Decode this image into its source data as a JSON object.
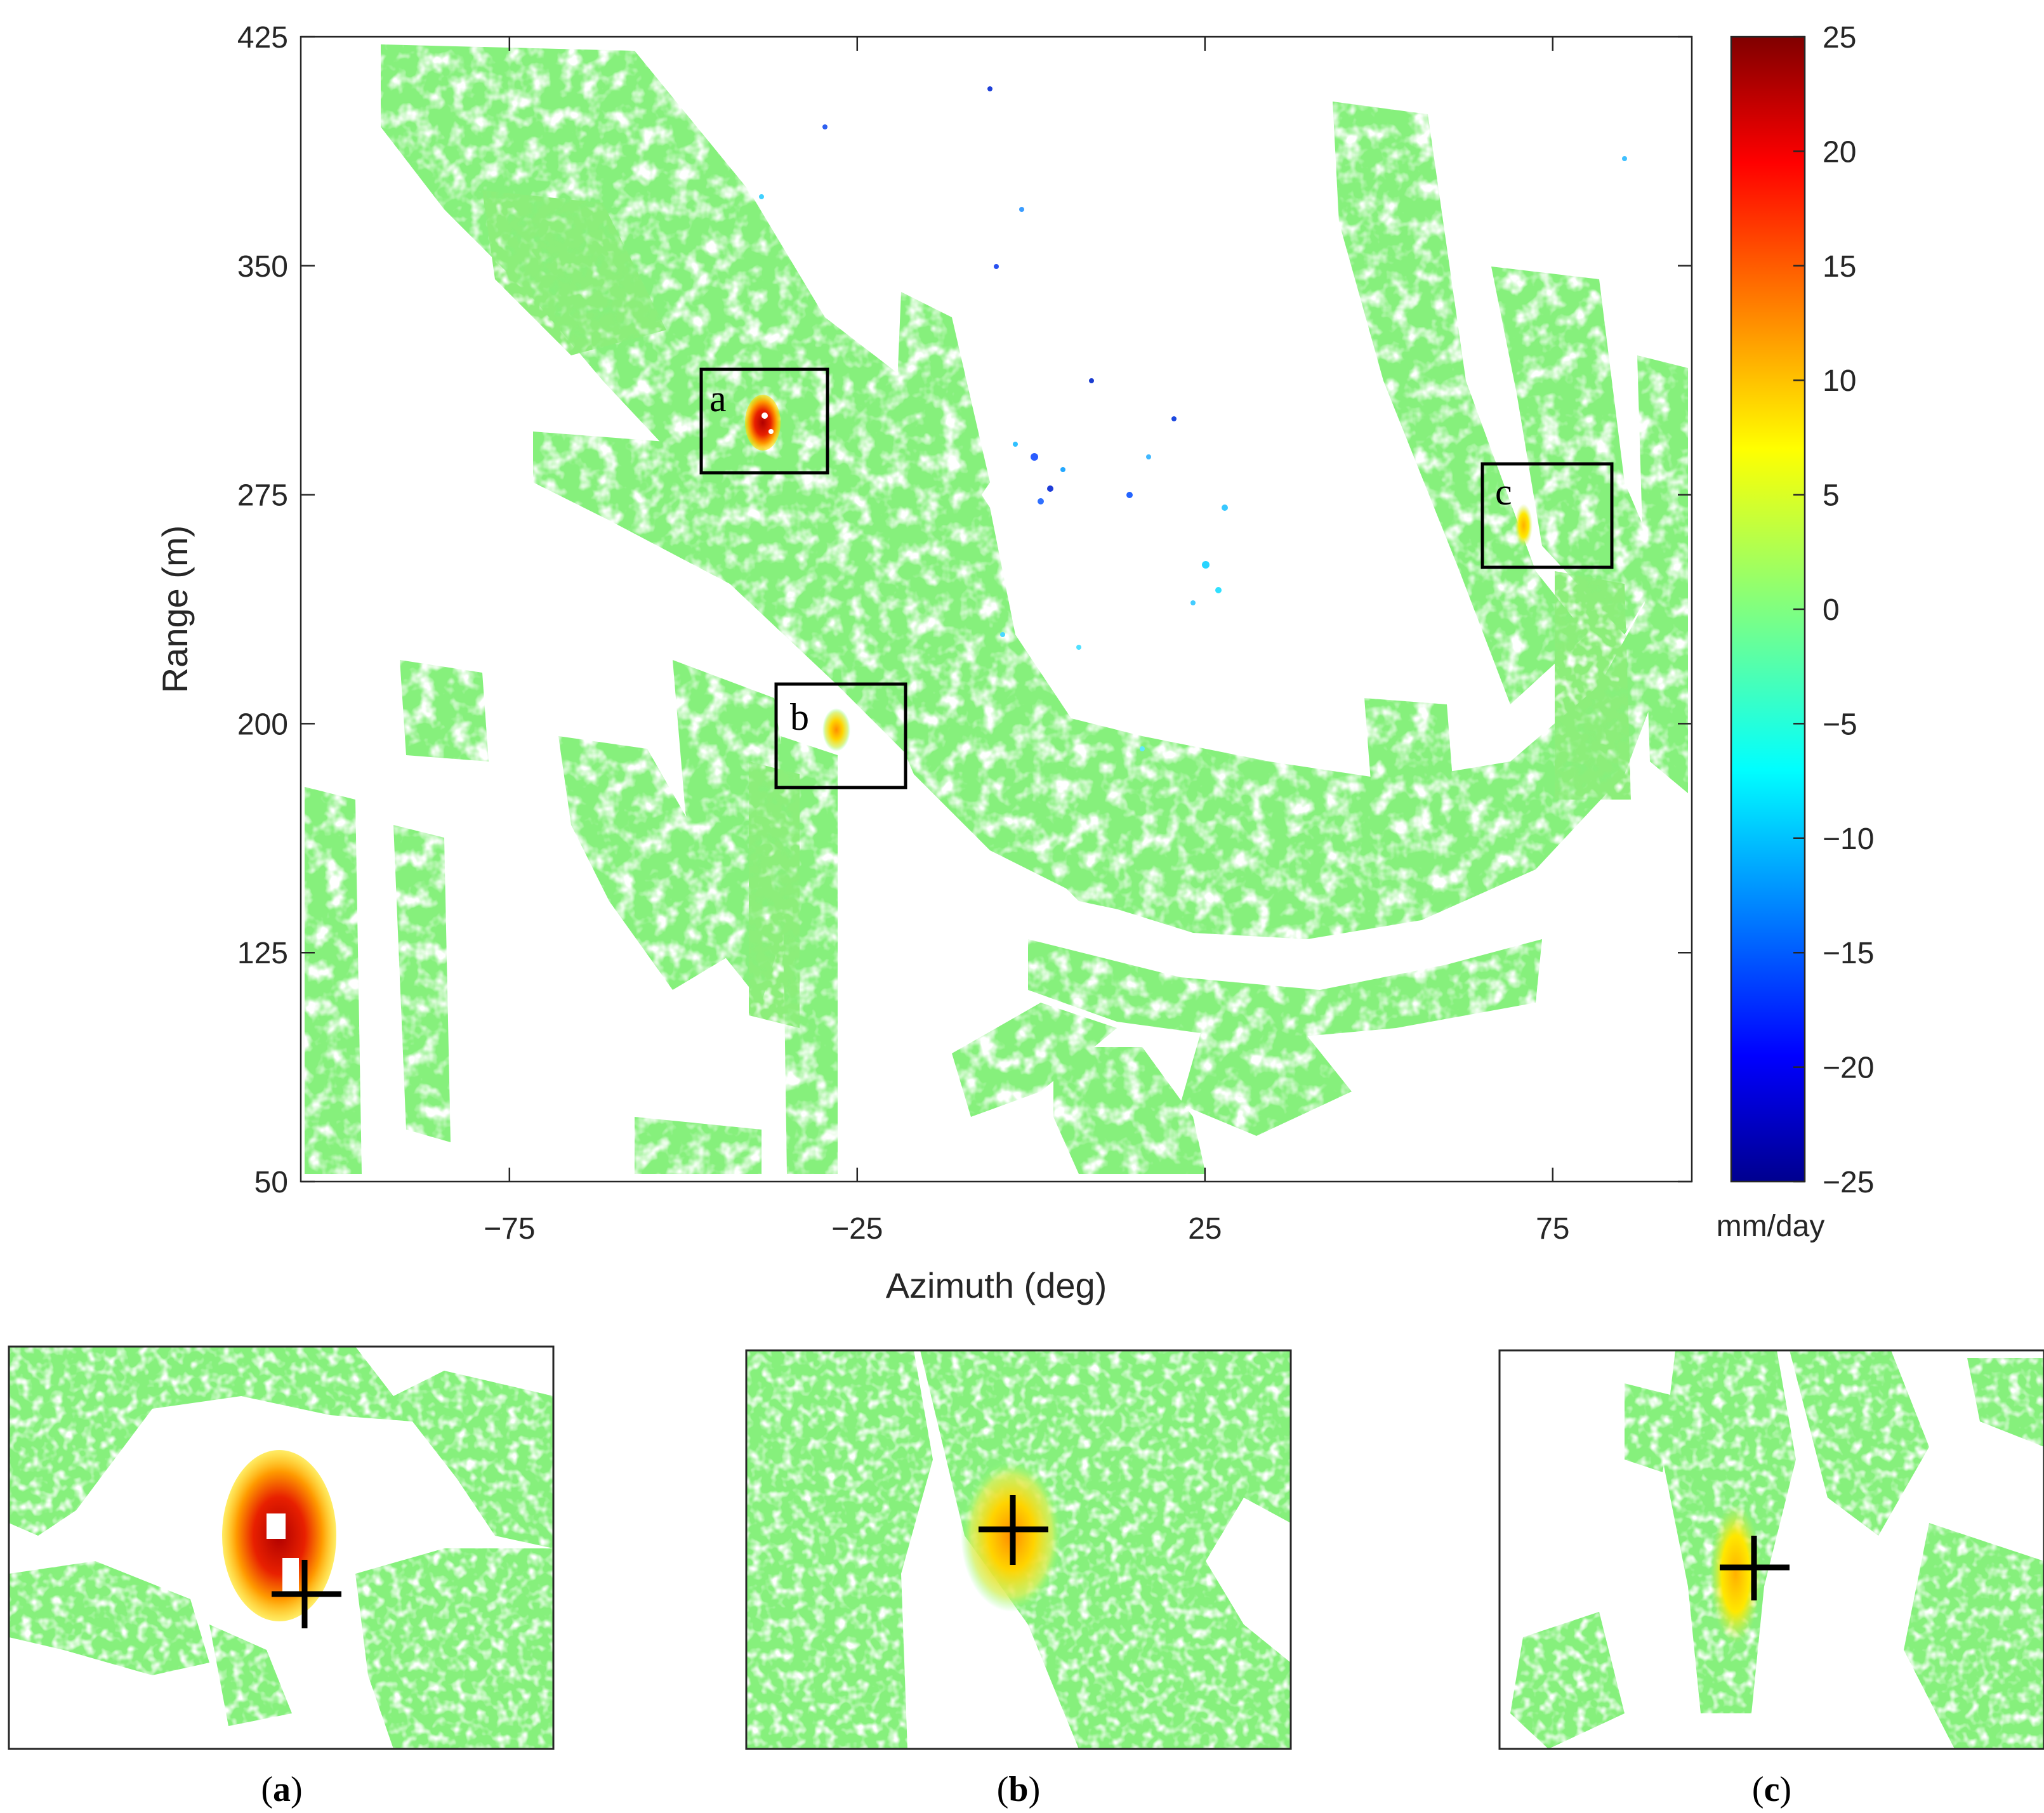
{
  "chart_data": [
    {
      "type": "heatmap",
      "title": "",
      "xlabel": "Azimuth (deg)",
      "ylabel": "Range (m)",
      "xlim": [
        -105,
        95
      ],
      "ylim": [
        50,
        425
      ],
      "xticks": [
        -75,
        -25,
        25,
        75
      ],
      "yticks": [
        50,
        125,
        200,
        275,
        350,
        425
      ],
      "colorbar": {
        "label": "mm/day",
        "range": [
          -25,
          25
        ],
        "ticks": [
          25,
          20,
          15,
          10,
          5,
          0,
          -5,
          -10,
          -15,
          -20,
          -25
        ],
        "tick_labels": [
          "25",
          "20",
          "15",
          "10",
          "5",
          "0",
          "−5",
          "−10",
          "−15",
          "−20",
          "−25"
        ],
        "colormap": "jet"
      },
      "background_value": 0,
      "boxes": [
        {
          "label": "a",
          "x": [
            -35,
            -17
          ],
          "y": [
            283,
            317
          ]
        },
        {
          "label": "b",
          "x": [
            -24,
            -5
          ],
          "y": [
            180,
            214
          ]
        },
        {
          "label": "c",
          "x": [
            72,
            91
          ],
          "y": [
            252,
            286
          ]
        }
      ],
      "hotspots": [
        {
          "name": "a",
          "x": -29,
          "y": 300,
          "peak_value": 22
        },
        {
          "name": "b",
          "x": -23,
          "y": 197,
          "peak_value": 10
        },
        {
          "name": "c",
          "x": 75,
          "y": 266,
          "peak_value": 8
        }
      ],
      "subsidence_points": [
        {
          "x": 10,
          "y": 275,
          "value": -13
        },
        {
          "x": 20,
          "y": 285,
          "value": -10
        },
        {
          "x": 27,
          "y": 250,
          "value": -7
        },
        {
          "x": 8,
          "y": 220,
          "value": -5
        },
        {
          "x": -5,
          "y": 330,
          "value": -8
        },
        {
          "x": 2,
          "y": 380,
          "value": -12
        }
      ]
    },
    {
      "type": "heatmap",
      "panel": "(a)",
      "zoom_of": "a",
      "peak_value": 22
    },
    {
      "type": "heatmap",
      "panel": "(b)",
      "zoom_of": "b",
      "peak_value": 10
    },
    {
      "type": "heatmap",
      "panel": "(c)",
      "zoom_of": "c",
      "peak_value": 8
    }
  ]
}
